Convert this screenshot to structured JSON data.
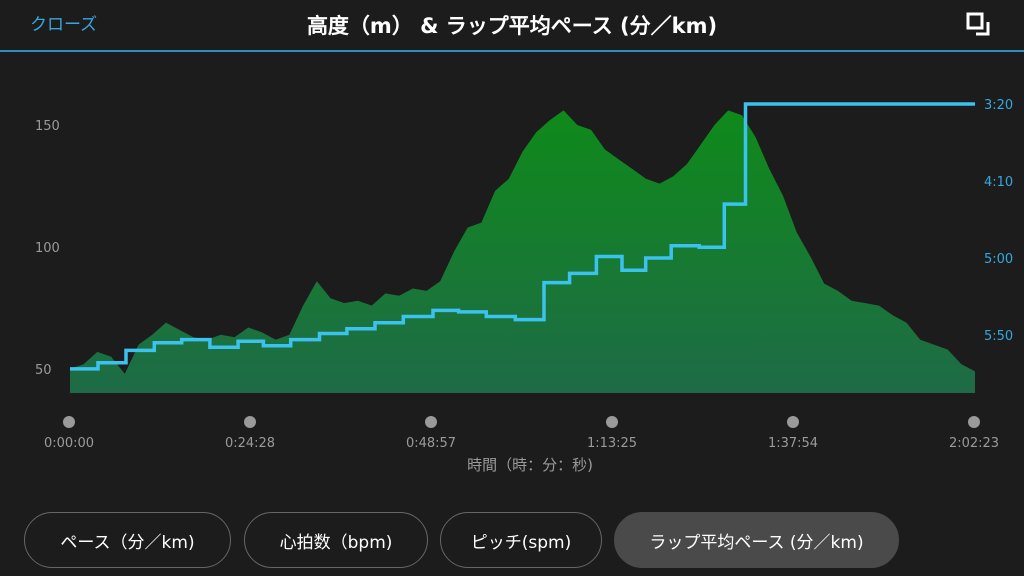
{
  "header": {
    "close_label": "クローズ",
    "title": "高度（m） & ラップ平均ペース (分／km)"
  },
  "colors": {
    "accent": "#35a7dc",
    "elevation_fill_top": "#0f8a1a",
    "elevation_fill_bottom": "#1e6b47",
    "pace_line": "#3cc2ee"
  },
  "tabs": [
    {
      "label": "ペース（分／km)",
      "active": false
    },
    {
      "label": "心拍数（bpm)",
      "active": false
    },
    {
      "label": "ピッチ(spm)",
      "active": false
    },
    {
      "label": "ラップ平均ペース (分／km)",
      "active": true
    }
  ],
  "chart_data": {
    "type": "area",
    "xlabel": "時間（時：分：秒)",
    "x_ticks": [
      "0:00:00",
      "0:24:28",
      "0:48:57",
      "1:13:25",
      "1:37:54",
      "2:02:23"
    ],
    "x_range_seconds": [
      0,
      7343
    ],
    "grid": false,
    "series": [
      {
        "axis": "left",
        "style": "filled-area",
        "ylim": [
          40,
          160
        ],
        "y_ticks": [
          "50",
          "100",
          "150"
        ],
        "values": [
          50,
          52,
          57,
          55,
          48,
          60,
          64,
          69,
          66,
          63,
          62,
          64,
          63,
          67,
          65,
          62,
          64,
          76,
          86,
          79,
          77,
          78,
          76,
          81,
          80,
          83,
          82,
          86,
          98,
          108,
          110,
          123,
          128,
          139,
          147,
          152,
          156,
          150,
          148,
          140,
          136,
          132,
          128,
          126,
          129,
          134,
          142,
          150,
          156,
          154,
          145,
          132,
          121,
          106,
          96,
          85,
          82,
          78,
          77,
          76,
          72,
          69,
          62,
          60,
          58,
          52,
          49
        ]
      },
      {
        "axis": "right",
        "style": "step",
        "ylim": [
          "3:20",
          "5:50"
        ],
        "y_ticks": [
          "3:20",
          "4:10",
          "5:00",
          "5:50"
        ],
        "steps": [
          {
            "start": "0:00:00",
            "pace": "6:12"
          },
          {
            "start": "0:03:47",
            "pace": "6:08"
          },
          {
            "start": "0:07:34",
            "pace": "6:00"
          },
          {
            "start": "0:11:24",
            "pace": "5:55"
          },
          {
            "start": "0:15:06",
            "pace": "5:53"
          },
          {
            "start": "0:18:55",
            "pace": "5:58"
          },
          {
            "start": "0:22:44",
            "pace": "5:54"
          },
          {
            "start": "0:26:09",
            "pace": "5:57"
          },
          {
            "start": "0:29:51",
            "pace": "5:53"
          },
          {
            "start": "0:33:44",
            "pace": "5:49"
          },
          {
            "start": "0:37:27",
            "pace": "5:46"
          },
          {
            "start": "0:41:15",
            "pace": "5:42"
          },
          {
            "start": "0:45:04",
            "pace": "5:38"
          },
          {
            "start": "0:49:05",
            "pace": "5:34"
          },
          {
            "start": "0:52:33",
            "pace": "5:35"
          },
          {
            "start": "0:56:18",
            "pace": "5:38"
          },
          {
            "start": "1:00:13",
            "pace": "5:40"
          },
          {
            "start": "1:04:06",
            "pace": "5:16"
          },
          {
            "start": "1:07:34",
            "pace": "5:10"
          },
          {
            "start": "1:11:11",
            "pace": "4:59"
          },
          {
            "start": "1:14:39",
            "pace": "5:08"
          },
          {
            "start": "1:17:51",
            "pace": "5:00"
          },
          {
            "start": "1:21:18",
            "pace": "4:52"
          },
          {
            "start": "1:25:05",
            "pace": "4:53"
          },
          {
            "start": "1:28:29",
            "pace": "4:25"
          },
          {
            "start": "1:31:21",
            "pace": "3:20"
          }
        ]
      }
    ]
  }
}
